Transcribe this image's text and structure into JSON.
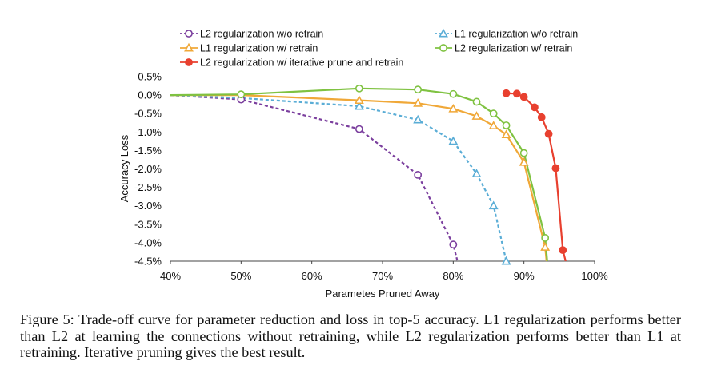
{
  "chart_data": {
    "type": "line",
    "xlabel": "Parametes Pruned Away",
    "ylabel": "Accuracy Loss",
    "xlim": [
      40,
      100
    ],
    "ylim": [
      -4.5,
      0.5
    ],
    "x_ticks": [
      40,
      50,
      60,
      70,
      80,
      90,
      100
    ],
    "x_tick_labels": [
      "40%",
      "50%",
      "60%",
      "70%",
      "80%",
      "90%",
      "100%"
    ],
    "y_ticks": [
      0.5,
      0.0,
      -0.5,
      -1.0,
      -1.5,
      -2.0,
      -2.5,
      -3.0,
      -3.5,
      -4.0,
      -4.5
    ],
    "y_tick_labels": [
      "0.5%",
      "0.0%",
      "-0.5%",
      "-1.0%",
      "-1.5%",
      "-2.0%",
      "-2.5%",
      "-3.0%",
      "-3.5%",
      "-4.0%",
      "-4.5%"
    ],
    "grid": false,
    "legend_placement": "top",
    "series": [
      {
        "name": "L2 regularization w/o retrain",
        "color": "#7b3f9e",
        "marker": "circle",
        "dash": true,
        "fill": "none",
        "x": [
          40,
          50,
          66.7,
          75,
          80,
          80.6
        ],
        "y": [
          0.0,
          -0.12,
          -0.92,
          -2.16,
          -4.05,
          -4.5
        ],
        "marker_x": [
          50,
          66.7,
          75,
          80
        ],
        "marker_y": [
          -0.12,
          -0.92,
          -2.16,
          -4.05
        ]
      },
      {
        "name": "L1 regularization w/o retrain",
        "color": "#5aadd6",
        "marker": "triangle",
        "dash": true,
        "fill": "none",
        "x": [
          40,
          50,
          66.7,
          75,
          80,
          83.3,
          85.7,
          87.5
        ],
        "y": [
          0.0,
          -0.08,
          -0.3,
          -0.67,
          -1.25,
          -2.13,
          -3.0,
          -4.5
        ],
        "marker_x": [
          66.7,
          75,
          80,
          83.3,
          85.7,
          87.5
        ],
        "marker_y": [
          -0.3,
          -0.67,
          -1.25,
          -2.13,
          -3.0,
          -4.5
        ]
      },
      {
        "name": "L1 regularization w/ retrain",
        "color": "#f0a838",
        "marker": "triangle",
        "dash": false,
        "fill": "none",
        "x": [
          40,
          50,
          66.7,
          75,
          80,
          83.3,
          85.7,
          87.5,
          90,
          93,
          93.2
        ],
        "y": [
          0.0,
          0.0,
          -0.14,
          -0.22,
          -0.37,
          -0.57,
          -0.83,
          -1.07,
          -1.82,
          -4.12,
          -4.5
        ],
        "marker_x": [
          66.7,
          75,
          80,
          83.3,
          85.7,
          87.5,
          90,
          93
        ],
        "marker_y": [
          -0.14,
          -0.22,
          -0.37,
          -0.57,
          -0.83,
          -1.07,
          -1.82,
          -4.12
        ]
      },
      {
        "name": "L2 regularization w/ retrain",
        "color": "#7fc241",
        "marker": "circle",
        "dash": false,
        "fill": "none",
        "x": [
          40,
          50,
          66.7,
          75,
          80,
          83.3,
          85.7,
          87.5,
          90,
          93,
          93.3
        ],
        "y": [
          0.0,
          0.02,
          0.18,
          0.15,
          0.03,
          -0.18,
          -0.5,
          -0.82,
          -1.57,
          -3.87,
          -4.5
        ],
        "marker_x": [
          50,
          66.7,
          75,
          80,
          83.3,
          85.7,
          87.5,
          90,
          93
        ],
        "marker_y": [
          0.02,
          0.18,
          0.15,
          0.03,
          -0.18,
          -0.5,
          -0.82,
          -1.57,
          -3.87
        ]
      },
      {
        "name": "L2 regularization w/ iterative prune and retrain",
        "color": "#e8402f",
        "marker": "circle",
        "dash": false,
        "fill": "solid",
        "x": [
          87.5,
          89,
          90,
          91.5,
          92.5,
          93.5,
          94.5,
          95.5,
          95.9
        ],
        "y": [
          0.05,
          0.04,
          -0.05,
          -0.33,
          -0.6,
          -1.05,
          -1.98,
          -4.2,
          -4.5
        ],
        "marker_x": [
          87.5,
          89,
          90,
          91.5,
          92.5,
          93.5,
          94.5,
          95.5
        ],
        "marker_y": [
          0.05,
          0.04,
          -0.05,
          -0.33,
          -0.6,
          -1.05,
          -1.98,
          -4.2
        ]
      }
    ]
  },
  "caption": "Figure 5: Trade-off curve for parameter reduction and loss in top-5 accuracy. L1 regularization performs better than L2 at learning the connections without retraining, while L2 regularization performs better than L1 at retraining. Iterative pruning gives the best result."
}
